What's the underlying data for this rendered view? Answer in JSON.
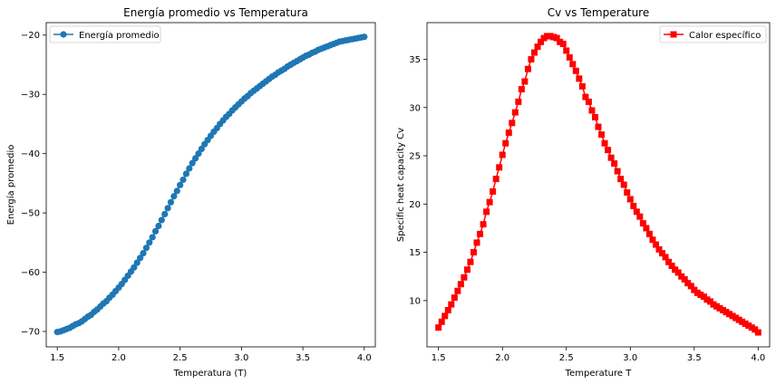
{
  "chart_data": [
    {
      "type": "line",
      "title": "Energía promedio vs Temperatura",
      "xlabel": "Temperatura (T)",
      "ylabel": "Energía promedio",
      "xlim": [
        1.41,
        4.09
      ],
      "ylim": [
        -72.6,
        -17.9
      ],
      "xticks": [
        1.5,
        2.0,
        2.5,
        3.0,
        3.5,
        4.0
      ],
      "xtick_labels": [
        "1.5",
        "2.0",
        "2.5",
        "3.0",
        "3.5",
        "4.0"
      ],
      "yticks": [
        -70,
        -60,
        -50,
        -40,
        -30,
        -20
      ],
      "ytick_labels": [
        "−70",
        "−60",
        "−50",
        "−40",
        "−30",
        "−20"
      ],
      "grid": false,
      "legend_position": "top-left",
      "series": [
        {
          "name": "Energía promedio",
          "color": "#1f77b4",
          "marker": "circle",
          "x": [
            1.5,
            1.525,
            1.55,
            1.575,
            1.6,
            1.625,
            1.65,
            1.675,
            1.7,
            1.725,
            1.75,
            1.775,
            1.8,
            1.825,
            1.85,
            1.875,
            1.9,
            1.925,
            1.95,
            1.975,
            2.0,
            2.025,
            2.05,
            2.075,
            2.1,
            2.125,
            2.15,
            2.175,
            2.2,
            2.225,
            2.25,
            2.275,
            2.3,
            2.325,
            2.35,
            2.375,
            2.4,
            2.425,
            2.45,
            2.475,
            2.5,
            2.525,
            2.55,
            2.575,
            2.6,
            2.625,
            2.65,
            2.675,
            2.7,
            2.725,
            2.75,
            2.775,
            2.8,
            2.825,
            2.85,
            2.875,
            2.9,
            2.925,
            2.95,
            2.975,
            3.0,
            3.025,
            3.05,
            3.075,
            3.1,
            3.125,
            3.15,
            3.175,
            3.2,
            3.225,
            3.25,
            3.275,
            3.3,
            3.325,
            3.35,
            3.375,
            3.4,
            3.425,
            3.45,
            3.475,
            3.5,
            3.525,
            3.55,
            3.575,
            3.6,
            3.625,
            3.65,
            3.675,
            3.7,
            3.725,
            3.75,
            3.775,
            3.8,
            3.825,
            3.85,
            3.875,
            3.9,
            3.925,
            3.95,
            3.975,
            4.0
          ],
          "y": [
            -70.1,
            -70.0,
            -69.8,
            -69.6,
            -69.4,
            -69.1,
            -68.8,
            -68.6,
            -68.3,
            -67.9,
            -67.5,
            -67.2,
            -66.7,
            -66.3,
            -65.8,
            -65.3,
            -64.9,
            -64.3,
            -63.8,
            -63.2,
            -62.6,
            -62.0,
            -61.3,
            -60.6,
            -59.9,
            -59.2,
            -58.4,
            -57.6,
            -56.8,
            -55.9,
            -55.0,
            -54.1,
            -53.1,
            -52.2,
            -51.2,
            -50.2,
            -49.2,
            -48.2,
            -47.2,
            -46.3,
            -45.3,
            -44.4,
            -43.4,
            -42.5,
            -41.6,
            -40.8,
            -40.0,
            -39.2,
            -38.4,
            -37.7,
            -37.0,
            -36.3,
            -35.7,
            -35.0,
            -34.4,
            -33.8,
            -33.3,
            -32.7,
            -32.2,
            -31.7,
            -31.2,
            -30.7,
            -30.3,
            -29.8,
            -29.4,
            -29.0,
            -28.6,
            -28.2,
            -27.8,
            -27.4,
            -27.0,
            -26.7,
            -26.3,
            -26.0,
            -25.7,
            -25.3,
            -25.0,
            -24.7,
            -24.4,
            -24.1,
            -23.8,
            -23.5,
            -23.3,
            -23.0,
            -22.8,
            -22.5,
            -22.3,
            -22.1,
            -21.9,
            -21.7,
            -21.5,
            -21.3,
            -21.1,
            -21.0,
            -20.9,
            -20.8,
            -20.7,
            -20.6,
            -20.5,
            -20.4,
            -20.3
          ]
        }
      ]
    },
    {
      "type": "line",
      "title": "Cv vs Temperature",
      "xlabel": "Temperature T",
      "ylabel": "Specific heat capacity Cv",
      "xlim": [
        1.41,
        4.09
      ],
      "ylim": [
        5.2,
        38.8
      ],
      "xticks": [
        1.5,
        2.0,
        2.5,
        3.0,
        3.5,
        4.0
      ],
      "xtick_labels": [
        "1.5",
        "2.0",
        "2.5",
        "3.0",
        "3.5",
        "4.0"
      ],
      "yticks": [
        10,
        15,
        20,
        25,
        30,
        35
      ],
      "ytick_labels": [
        "10",
        "15",
        "20",
        "25",
        "30",
        "35"
      ],
      "grid": false,
      "legend_position": "top-right",
      "series": [
        {
          "name": "Calor específico",
          "color": "#ff0000",
          "marker": "square",
          "x": [
            1.5,
            1.525,
            1.55,
            1.575,
            1.6,
            1.625,
            1.65,
            1.675,
            1.7,
            1.725,
            1.75,
            1.775,
            1.8,
            1.825,
            1.85,
            1.875,
            1.9,
            1.925,
            1.95,
            1.975,
            2.0,
            2.025,
            2.05,
            2.075,
            2.1,
            2.125,
            2.15,
            2.175,
            2.2,
            2.225,
            2.25,
            2.275,
            2.3,
            2.325,
            2.35,
            2.375,
            2.4,
            2.425,
            2.45,
            2.475,
            2.5,
            2.525,
            2.55,
            2.575,
            2.6,
            2.625,
            2.65,
            2.675,
            2.7,
            2.725,
            2.75,
            2.775,
            2.8,
            2.825,
            2.85,
            2.875,
            2.9,
            2.925,
            2.95,
            2.975,
            3.0,
            3.025,
            3.05,
            3.075,
            3.1,
            3.125,
            3.15,
            3.175,
            3.2,
            3.225,
            3.25,
            3.275,
            3.3,
            3.325,
            3.35,
            3.375,
            3.4,
            3.425,
            3.45,
            3.475,
            3.5,
            3.525,
            3.55,
            3.575,
            3.6,
            3.625,
            3.65,
            3.675,
            3.7,
            3.725,
            3.75,
            3.775,
            3.8,
            3.825,
            3.85,
            3.875,
            3.9,
            3.925,
            3.95,
            3.975,
            4.0
          ],
          "y": [
            7.2,
            7.8,
            8.4,
            9.0,
            9.6,
            10.3,
            11.0,
            11.7,
            12.4,
            13.2,
            14.0,
            15.0,
            16.0,
            16.9,
            17.9,
            19.2,
            20.2,
            21.3,
            22.6,
            23.8,
            25.1,
            26.3,
            27.4,
            28.4,
            29.5,
            30.6,
            31.9,
            32.7,
            34.0,
            35.0,
            35.7,
            36.3,
            36.8,
            37.2,
            37.4,
            37.4,
            37.3,
            37.2,
            36.8,
            36.6,
            35.9,
            35.2,
            34.5,
            33.8,
            33.0,
            32.2,
            31.1,
            30.6,
            29.7,
            29.0,
            28.0,
            27.2,
            26.3,
            25.6,
            24.8,
            24.2,
            23.4,
            22.6,
            22.0,
            21.2,
            20.5,
            19.8,
            19.2,
            18.7,
            18.0,
            17.5,
            16.9,
            16.3,
            15.8,
            15.3,
            14.9,
            14.5,
            14.0,
            13.6,
            13.2,
            12.9,
            12.5,
            12.2,
            11.8,
            11.5,
            11.1,
            10.8,
            10.6,
            10.4,
            10.1,
            9.9,
            9.6,
            9.4,
            9.2,
            9.0,
            8.8,
            8.6,
            8.4,
            8.2,
            8.0,
            7.8,
            7.6,
            7.4,
            7.2,
            7.0,
            6.7
          ]
        }
      ]
    }
  ]
}
